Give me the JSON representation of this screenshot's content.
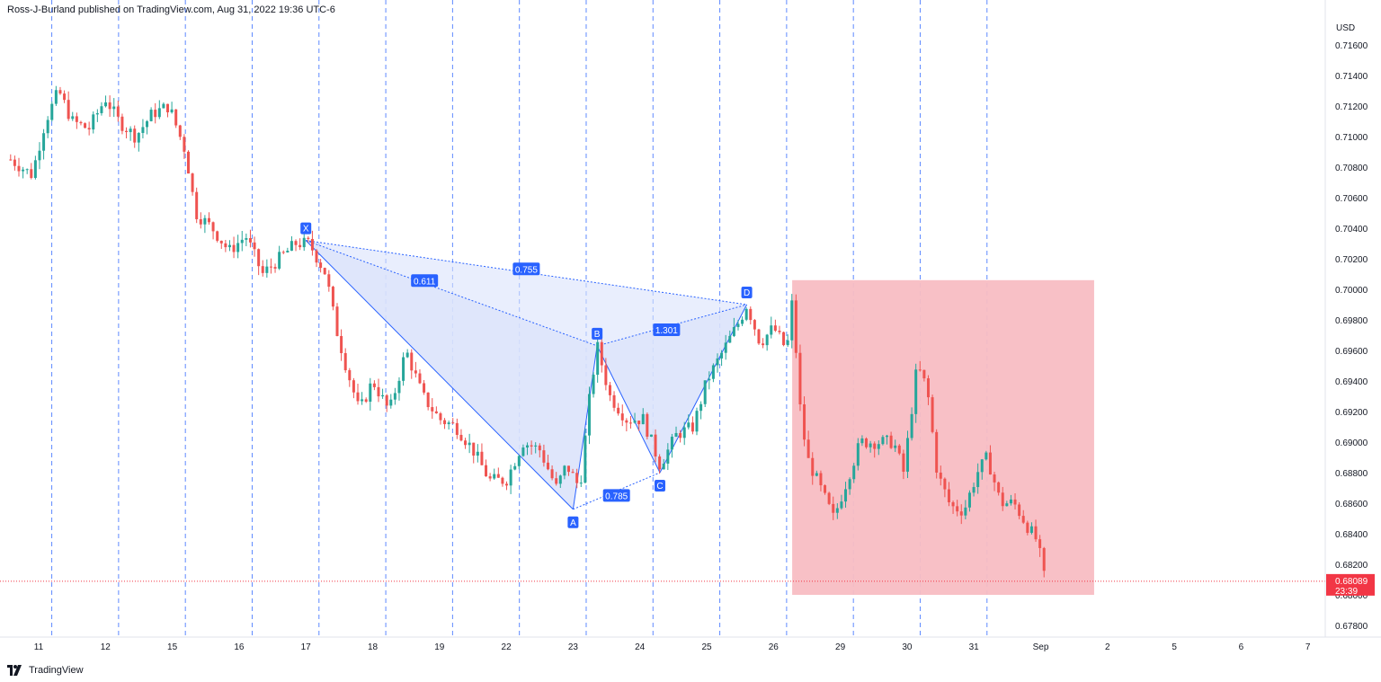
{
  "header": {
    "publisher_line": "Ross-J-Burland published on TradingView.com, Aug 31, 2022 19:36 UTC-6"
  },
  "footer": {
    "brand": "TradingView"
  },
  "colors": {
    "up": "#26a69a",
    "down": "#ef5350",
    "pattern_fill": "#dbe3fb",
    "pattern_line": "#2962ff",
    "label_bg": "#2962ff",
    "target_box": "#f8bdc3",
    "price_tag": "#f23645",
    "session_line": "#2962ff"
  },
  "chart_data": {
    "type": "candlestick",
    "currency": "USD",
    "yticks": [
      "0.71600",
      "0.71400",
      "0.71200",
      "0.71000",
      "0.70800",
      "0.70600",
      "0.70400",
      "0.70200",
      "0.70000",
      "0.69800",
      "0.69600",
      "0.69400",
      "0.69200",
      "0.69000",
      "0.68800",
      "0.68600",
      "0.68400",
      "0.68200",
      "0.68000",
      "0.67800"
    ],
    "ylim": [
      0.6768,
      0.7184
    ],
    "xticks": [
      "11",
      "12",
      "15",
      "16",
      "17",
      "18",
      "19",
      "22",
      "23",
      "24",
      "25",
      "26",
      "29",
      "30",
      "31",
      "Sep",
      "2",
      "5",
      "6",
      "7"
    ],
    "last_price": "0.68089",
    "last_price_value": 0.68089,
    "countdown": "23:39",
    "harmonic_pattern": {
      "points": [
        {
          "label": "X",
          "x": 4,
          "y": 0.7032
        },
        {
          "label": "A",
          "x": 8,
          "y": 0.6856
        },
        {
          "label": "B",
          "x": 8.36,
          "y": 0.6963
        },
        {
          "label": "C",
          "x": 9.3,
          "y": 0.688
        },
        {
          "label": "D",
          "x": 10.6,
          "y": 0.699
        }
      ],
      "ratios": [
        {
          "value": "0.611",
          "between": [
            "X",
            "B"
          ]
        },
        {
          "value": "0.755",
          "between": [
            "X",
            "D"
          ]
        },
        {
          "value": "1.301",
          "between": [
            "B",
            "D"
          ]
        },
        {
          "value": "0.785",
          "between": [
            "A",
            "C"
          ]
        }
      ]
    },
    "target_zone": {
      "x_from": 11.28,
      "x_to": 15.8,
      "y_from": 0.68,
      "y_to": 0.7006
    },
    "price_path": [
      [
        -0.42,
        0.7085
      ],
      [
        -0.1,
        0.7075
      ],
      [
        0.1,
        0.711
      ],
      [
        0.3,
        0.713
      ],
      [
        0.5,
        0.711
      ],
      [
        0.75,
        0.7105
      ],
      [
        1.0,
        0.7125
      ],
      [
        1.2,
        0.711
      ],
      [
        1.45,
        0.71
      ],
      [
        1.7,
        0.7115
      ],
      [
        1.95,
        0.712
      ],
      [
        2.2,
        0.709
      ],
      [
        2.35,
        0.705
      ],
      [
        2.6,
        0.704
      ],
      [
        2.85,
        0.7025
      ],
      [
        3.1,
        0.7035
      ],
      [
        3.35,
        0.701
      ],
      [
        3.6,
        0.702
      ],
      [
        3.85,
        0.703
      ],
      [
        4.05,
        0.703
      ],
      [
        4.3,
        0.701
      ],
      [
        4.45,
        0.6975
      ],
      [
        4.6,
        0.695
      ],
      [
        4.8,
        0.692
      ],
      [
        5.0,
        0.694
      ],
      [
        5.25,
        0.692
      ],
      [
        5.5,
        0.696
      ],
      [
        5.75,
        0.693
      ],
      [
        6.0,
        0.6915
      ],
      [
        6.25,
        0.691
      ],
      [
        6.5,
        0.6895
      ],
      [
        6.75,
        0.6875
      ],
      [
        7.0,
        0.6875
      ],
      [
        7.25,
        0.69
      ],
      [
        7.5,
        0.6895
      ],
      [
        7.75,
        0.687
      ],
      [
        7.9,
        0.6885
      ],
      [
        8.1,
        0.687
      ],
      [
        8.25,
        0.693
      ],
      [
        8.36,
        0.6963
      ],
      [
        8.55,
        0.693
      ],
      [
        8.8,
        0.6915
      ],
      [
        9.05,
        0.6915
      ],
      [
        9.3,
        0.6885
      ],
      [
        9.55,
        0.6905
      ],
      [
        9.8,
        0.691
      ],
      [
        10.0,
        0.694
      ],
      [
        10.25,
        0.696
      ],
      [
        10.5,
        0.698
      ],
      [
        10.6,
        0.699
      ],
      [
        10.8,
        0.6965
      ],
      [
        11.0,
        0.6975
      ],
      [
        11.2,
        0.696
      ],
      [
        11.3,
        0.7
      ],
      [
        11.36,
        0.6935
      ],
      [
        11.5,
        0.689
      ],
      [
        11.7,
        0.687
      ],
      [
        11.9,
        0.685
      ],
      [
        12.1,
        0.6875
      ],
      [
        12.3,
        0.69
      ],
      [
        12.55,
        0.69
      ],
      [
        12.8,
        0.69
      ],
      [
        12.95,
        0.688
      ],
      [
        13.15,
        0.695
      ],
      [
        13.3,
        0.6935
      ],
      [
        13.45,
        0.688
      ],
      [
        13.65,
        0.6858
      ],
      [
        13.85,
        0.6855
      ],
      [
        14.05,
        0.688
      ],
      [
        14.2,
        0.689
      ],
      [
        14.4,
        0.686
      ],
      [
        14.6,
        0.686
      ],
      [
        14.8,
        0.6845
      ],
      [
        14.95,
        0.6835
      ],
      [
        15.05,
        0.6812
      ]
    ]
  }
}
